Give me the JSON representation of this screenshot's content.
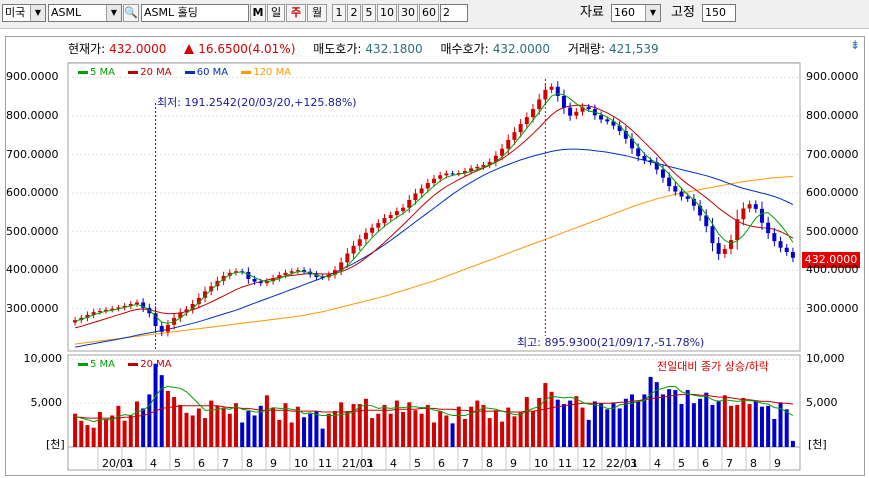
{
  "toolbar": {
    "market": "미국",
    "symbol": "ASML",
    "name": "ASML 홀딩",
    "m_label": "M",
    "periods": [
      "일",
      "주",
      "월"
    ],
    "active_period": "주",
    "intervals": [
      "1",
      "2",
      "5",
      "10",
      "30",
      "60"
    ],
    "interval_value": "2",
    "data_label": "자료",
    "data_value": "160",
    "fix_label": "고정",
    "fix_value": "150"
  },
  "info": {
    "price_label": "현재가:",
    "price": "432.0000",
    "change": "16.6500(4.01%)",
    "ask_label": "매도호가:",
    "ask": "432.1800",
    "bid_label": "매수호가:",
    "bid": "432.0000",
    "volume_label": "거래량:",
    "volume": "421,539"
  },
  "colors": {
    "up": "#d40000",
    "down": "#0000cc",
    "ma5": "#00a000",
    "ma20": "#c00000",
    "ma60": "#0030c0",
    "ma120": "#ff9900"
  },
  "price_legend": [
    {
      "label": "5 MA",
      "color": "#00a000"
    },
    {
      "label": "20 MA",
      "color": "#c00000"
    },
    {
      "label": "60 MA",
      "color": "#0030c0"
    },
    {
      "label": "120 MA",
      "color": "#ff9900"
    }
  ],
  "volume_legend": [
    {
      "label": "5 MA",
      "color": "#00a000"
    },
    {
      "label": "20 MA",
      "color": "#c00000"
    }
  ],
  "annotations": {
    "low": "최저: 191.2542(20/03/20,+125.88%)",
    "high": "최고: 895.9300(21/09/17,-51.78%)",
    "current_tag": "432.0000",
    "volume_note": "전일대비 종가 상승/하락",
    "corner_icon": "⇟"
  },
  "chart_data": {
    "type": "candlestick",
    "price_ticks": [
      "900.0000",
      "800.0000",
      "700.0000",
      "600.0000",
      "500.0000",
      "400.0000",
      "300.0000"
    ],
    "price_tick_values": [
      900,
      800,
      700,
      600,
      500,
      400,
      300
    ],
    "price_ylim": [
      190,
      935
    ],
    "volume_ticks": [
      "10,000",
      "5,000"
    ],
    "volume_tick_values": [
      10000,
      5000
    ],
    "volume_unit": "[천]",
    "volume_ylim": [
      0,
      10500
    ],
    "x_labels": [
      "20/01",
      "3",
      "4",
      "5",
      "6",
      "7",
      "8",
      "9",
      "10",
      "11",
      "21/01",
      "3",
      "4",
      "5",
      "6",
      "7",
      "8",
      "9",
      "10",
      "11",
      "12",
      "22/01",
      "3",
      "4",
      "5",
      "6",
      "7",
      "8",
      "9"
    ],
    "closes": [
      270,
      276,
      284,
      291,
      294,
      297,
      300,
      303,
      307,
      312,
      316,
      302,
      288,
      255,
      240,
      258,
      276,
      290,
      298,
      312,
      328,
      345,
      358,
      372,
      385,
      393,
      397,
      395,
      377,
      370,
      366,
      371,
      379,
      387,
      393,
      397,
      400,
      396,
      389,
      382,
      381,
      388,
      400,
      420,
      443,
      463,
      480,
      497,
      510,
      522,
      535,
      543,
      553,
      562,
      582,
      599,
      612,
      626,
      637,
      646,
      651,
      650,
      652,
      657,
      664,
      668,
      673,
      681,
      697,
      715,
      738,
      758,
      779,
      797,
      818,
      843,
      868,
      876,
      852,
      822,
      801,
      811,
      823,
      818,
      802,
      791,
      786,
      775,
      761,
      741,
      716,
      696,
      685,
      680,
      661,
      640,
      618,
      604,
      591,
      585,
      567,
      542,
      514,
      470,
      442,
      455,
      478,
      532,
      560,
      571,
      559,
      523,
      496,
      475,
      458,
      447,
      432
    ],
    "volumes": [
      3800,
      3000,
      2500,
      2200,
      4000,
      3200,
      3600,
      4700,
      3000,
      3600,
      5200,
      4400,
      6000,
      9500,
      8200,
      6400,
      5700,
      4800,
      3900,
      3600,
      4400,
      3300,
      5300,
      4700,
      4500,
      3800,
      5000,
      2800,
      4100,
      3600,
      4700,
      5900,
      4500,
      3100,
      5000,
      2800,
      4600,
      3400,
      3800,
      4100,
      2100,
      3800,
      4100,
      5100,
      4100,
      4900,
      4900,
      5500,
      3300,
      3800,
      4800,
      3800,
      5300,
      4000,
      5100,
      4200,
      3800,
      4800,
      2800,
      4100,
      3600,
      2700,
      4600,
      3200,
      4600,
      5300,
      4800,
      3300,
      4200,
      2900,
      4500,
      3500,
      4000,
      5700,
      4100,
      5600,
      7300,
      6300,
      5400,
      4900,
      5300,
      5800,
      4500,
      3100,
      5200,
      5000,
      4300,
      5100,
      4400,
      5500,
      6000,
      5200,
      6000,
      8000,
      7400,
      6000,
      6600,
      6500,
      4900,
      6500,
      5000,
      5500,
      6200,
      4800,
      5300,
      5900,
      4700,
      4800,
      5600,
      4900,
      5300,
      4600,
      4700,
      3200,
      5100,
      4300,
      700
    ],
    "ma5": [
      268,
      272,
      278,
      284,
      289,
      293,
      296,
      299,
      303,
      307,
      311,
      306,
      296,
      280,
      265,
      262,
      266,
      276,
      288,
      301,
      316,
      333,
      349,
      364,
      377,
      388,
      394,
      395,
      389,
      381,
      374,
      370,
      373,
      378,
      385,
      391,
      396,
      396,
      393,
      387,
      383,
      384,
      389,
      398,
      412,
      428,
      447,
      466,
      484,
      500,
      514,
      526,
      537,
      547,
      559,
      574,
      589,
      604,
      618,
      631,
      641,
      646,
      649,
      652,
      656,
      661,
      667,
      673,
      682,
      694,
      710,
      728,
      748,
      768,
      789,
      810,
      832,
      852,
      858,
      855,
      845,
      832,
      821,
      813,
      810,
      805,
      797,
      787,
      775,
      758,
      740,
      721,
      702,
      688,
      678,
      665,
      649,
      630,
      612,
      596,
      582,
      565,
      544,
      520,
      494,
      477,
      469,
      476,
      490,
      512,
      535,
      548,
      549,
      535,
      517,
      497,
      472
    ],
    "ma20": [
      250,
      254,
      259,
      264,
      269,
      274,
      279,
      284,
      289,
      294,
      298,
      299,
      297,
      293,
      289,
      287,
      287,
      289,
      292,
      297,
      303,
      310,
      317,
      325,
      333,
      341,
      349,
      356,
      361,
      366,
      370,
      374,
      378,
      381,
      384,
      386,
      388,
      390,
      391,
      391,
      390,
      390,
      392,
      396,
      402,
      410,
      420,
      432,
      444,
      458,
      472,
      487,
      502,
      517,
      533,
      549,
      565,
      580,
      594,
      606,
      617,
      626,
      635,
      643,
      651,
      658,
      665,
      672,
      680,
      689,
      700,
      712,
      725,
      739,
      754,
      770,
      787,
      803,
      815,
      822,
      826,
      828,
      828,
      826,
      822,
      815,
      808,
      799,
      789,
      777,
      763,
      748,
      732,
      716,
      700,
      683,
      666,
      650,
      636,
      623,
      612,
      600,
      588,
      575,
      561,
      549,
      538,
      528,
      520,
      515,
      512,
      510,
      509,
      506,
      500,
      492,
      483
    ],
    "ma60": [
      200,
      203,
      206,
      209,
      212,
      215,
      218,
      221,
      224,
      227,
      231,
      234,
      237,
      240,
      243,
      246,
      250,
      254,
      258,
      262,
      266,
      271,
      276,
      281,
      286,
      291,
      296,
      302,
      308,
      314,
      320,
      326,
      332,
      338,
      344,
      350,
      356,
      362,
      368,
      374,
      380,
      387,
      394,
      401,
      409,
      417,
      426,
      435,
      445,
      455,
      466,
      477,
      489,
      501,
      513,
      525,
      537,
      549,
      561,
      573,
      585,
      597,
      608,
      618,
      628,
      637,
      646,
      654,
      661,
      668,
      674,
      680,
      686,
      691,
      696,
      700,
      704,
      708,
      711,
      713,
      714,
      714,
      713,
      712,
      710,
      708,
      706,
      703,
      700,
      697,
      693,
      689,
      685,
      681,
      677,
      673,
      669,
      665,
      661,
      657,
      653,
      649,
      645,
      640,
      635,
      629,
      623,
      617,
      612,
      608,
      604,
      600,
      596,
      591,
      585,
      578,
      570
    ],
    "ma120": [
      208,
      210,
      212,
      214,
      216,
      218,
      220,
      222,
      224,
      226,
      228,
      230,
      232,
      234,
      236,
      238,
      240,
      242,
      244,
      246,
      248,
      250,
      252,
      254,
      256,
      258,
      260,
      262,
      264,
      266,
      268,
      270,
      272,
      274,
      276,
      278,
      280,
      283,
      286,
      289,
      292,
      296,
      300,
      304,
      308,
      312,
      316,
      320,
      324,
      328,
      332,
      337,
      342,
      347,
      352,
      357,
      362,
      367,
      372,
      378,
      384,
      390,
      396,
      402,
      408,
      414,
      420,
      426,
      432,
      438,
      444,
      450,
      456,
      462,
      468,
      474,
      480,
      486,
      492,
      498,
      504,
      510,
      516,
      522,
      528,
      534,
      540,
      546,
      552,
      558,
      564,
      570,
      575,
      580,
      585,
      589,
      593,
      597,
      600,
      603,
      606,
      609,
      612,
      615,
      618,
      621,
      624,
      627,
      630,
      632,
      634,
      636,
      638,
      640,
      641,
      642,
      643
    ],
    "vol_ma5": [
      3500,
      3300,
      3100,
      2900,
      3100,
      3100,
      3100,
      3500,
      3700,
      3600,
      4000,
      4200,
      4700,
      5800,
      6700,
      6900,
      6800,
      6700,
      6300,
      5600,
      4900,
      4200,
      4200,
      4300,
      4400,
      4300,
      4600,
      4300,
      4200,
      4000,
      4000,
      4200,
      4500,
      4400,
      4400,
      4300,
      4200,
      3800,
      3900,
      3700,
      3600,
      3600,
      3600,
      3700,
      3800,
      4000,
      4600,
      4800,
      4700,
      4400,
      4500,
      4400,
      4500,
      4500,
      4600,
      4600,
      4500,
      4500,
      4200,
      4100,
      3800,
      3600,
      3600,
      3600,
      3800,
      4100,
      4500,
      4400,
      4300,
      4100,
      3900,
      3700,
      3700,
      4100,
      4400,
      4600,
      5400,
      5800,
      5700,
      5600,
      5700,
      5500,
      5100,
      4900,
      4800,
      4700,
      4400,
      4400,
      4800,
      4900,
      5000,
      5200,
      5300,
      6000,
      6500,
      6700,
      6900,
      6900,
      6300,
      6100,
      5900,
      5800,
      5800,
      5400,
      5200,
      5400,
      5300,
      5200,
      5300,
      5300,
      5200,
      5000,
      4900,
      4500,
      4400,
      4000,
      3600
    ],
    "vol_ma20": [
      3400,
      3400,
      3300,
      3300,
      3300,
      3300,
      3300,
      3300,
      3400,
      3400,
      3500,
      3600,
      3800,
      4100,
      4400,
      4500,
      4600,
      4700,
      4700,
      4700,
      4700,
      4700,
      4700,
      4700,
      4600,
      4500,
      4500,
      4400,
      4400,
      4300,
      4200,
      4200,
      4200,
      4200,
      4200,
      4100,
      4100,
      4100,
      4100,
      4100,
      4000,
      4000,
      4000,
      4000,
      4000,
      4100,
      4100,
      4200,
      4200,
      4200,
      4200,
      4200,
      4300,
      4300,
      4300,
      4300,
      4400,
      4400,
      4400,
      4300,
      4300,
      4300,
      4200,
      4200,
      4100,
      4100,
      4100,
      4100,
      4100,
      4100,
      4000,
      4000,
      4000,
      4100,
      4100,
      4200,
      4300,
      4500,
      4600,
      4700,
      4800,
      4900,
      5000,
      5000,
      5000,
      5000,
      5000,
      5000,
      5100,
      5100,
      5200,
      5300,
      5400,
      5500,
      5600,
      5700,
      5800,
      5900,
      6000,
      6000,
      6000,
      5900,
      5900,
      5800,
      5700,
      5700,
      5600,
      5500,
      5400,
      5400,
      5300,
      5200,
      5200,
      5100,
      5000,
      5000,
      4900
    ],
    "low_marker_index": 13,
    "high_marker_index": 76
  }
}
